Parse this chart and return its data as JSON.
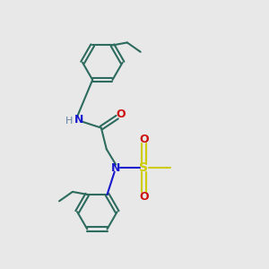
{
  "bg_color": "#e8e8e8",
  "bond_color": "#2d6b5e",
  "n_color": "#1818cc",
  "o_color": "#cc1010",
  "s_color": "#cccc00",
  "h_color": "#6080a0",
  "lw": 1.5,
  "ring_r": 0.75,
  "xlim": [
    0,
    10
  ],
  "ylim": [
    0,
    10
  ]
}
